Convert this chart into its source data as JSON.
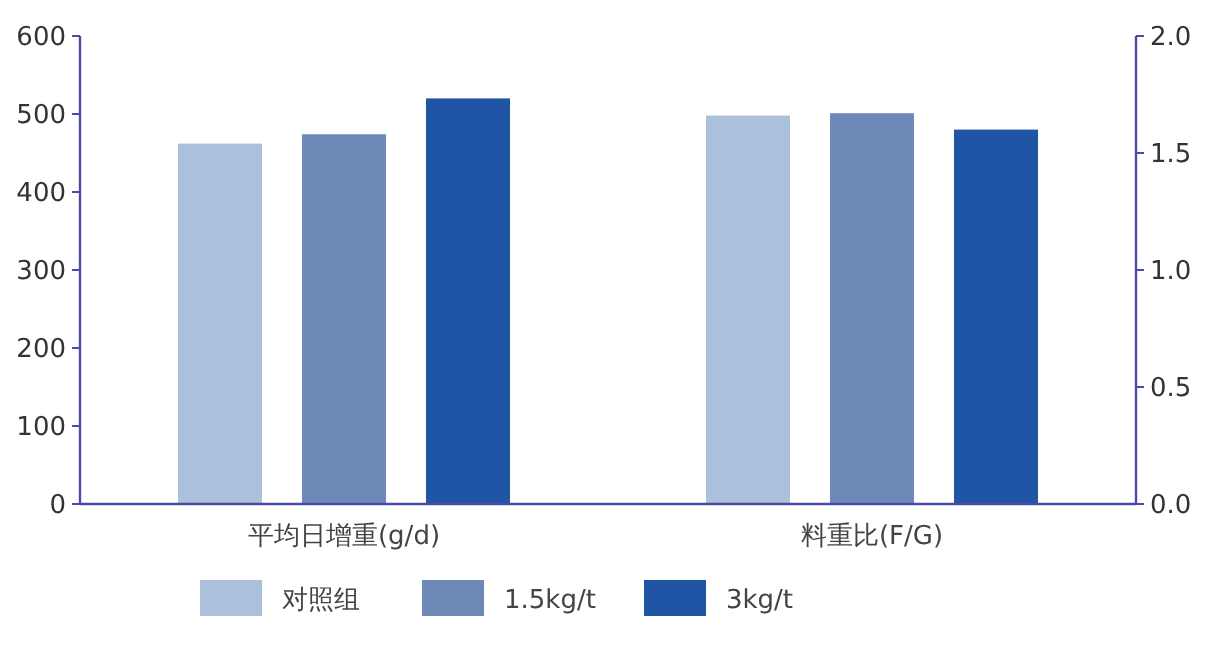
{
  "chart_data": {
    "type": "bar",
    "categories": [
      "平均日增重(g/d)",
      "料重比(F/G)"
    ],
    "ylim": [
      0,
      600
    ],
    "yticks": [
      0,
      100,
      200,
      300,
      400,
      500,
      600
    ],
    "y2lim": [
      0,
      2
    ],
    "y2ticks": [
      {
        "value": 0,
        "label": "0.0"
      },
      {
        "value": 0.5,
        "label": "0.5"
      },
      {
        "value": 1,
        "label": "1.0"
      },
      {
        "value": 1.5,
        "label": "1.5"
      },
      {
        "value": 2,
        "label": "2.0"
      }
    ],
    "legend": "bottom",
    "series": [
      {
        "name": "对照组",
        "color": "#abc0da",
        "values": [
          462,
          null
        ]
      },
      {
        "name": "1.5kg/t",
        "color": "#6e88b8",
        "values": [
          474,
          null
        ]
      },
      {
        "name": "3kg/t",
        "color": "#2054a4",
        "values": [
          520,
          null
        ]
      },
      {
        "color": "#abc0da",
        "axis": "y2",
        "values": [
          null,
          1.66
        ]
      },
      {
        "color": "#6e88b8",
        "axis": "y2",
        "values": [
          null,
          1.67
        ]
      },
      {
        "color": "#2054a4",
        "axis": "y2",
        "values": [
          null,
          1.6
        ]
      }
    ]
  }
}
